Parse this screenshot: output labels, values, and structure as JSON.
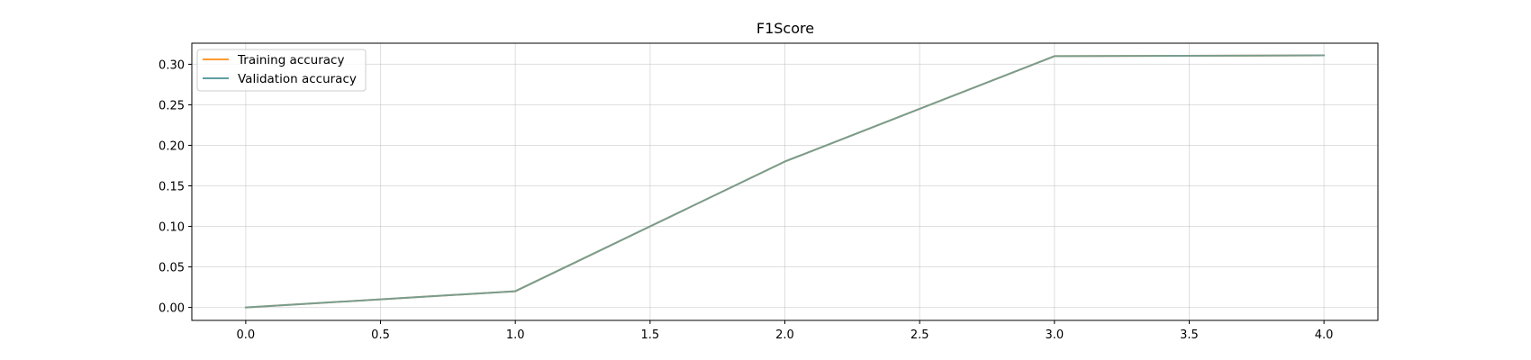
{
  "chart_data": {
    "type": "line",
    "title": "F1Score",
    "xlabel": "",
    "ylabel": "",
    "x": [
      0,
      1,
      2,
      3,
      4
    ],
    "xlim": [
      -0.2,
      4.2
    ],
    "ylim": [
      -0.016,
      0.326
    ],
    "xticks": [
      0.0,
      0.5,
      1.0,
      1.5,
      2.0,
      2.5,
      3.0,
      3.5,
      4.0
    ],
    "yticks": [
      0.0,
      0.05,
      0.1,
      0.15,
      0.2,
      0.25,
      0.3
    ],
    "xtick_labels": [
      "0.0",
      "0.5",
      "1.0",
      "1.5",
      "2.0",
      "2.5",
      "3.0",
      "3.5",
      "4.0"
    ],
    "ytick_labels": [
      "0.00",
      "0.05",
      "0.10",
      "0.15",
      "0.20",
      "0.25",
      "0.30"
    ],
    "grid": true,
    "legend_position": "top-left",
    "series": [
      {
        "name": "Training accuracy",
        "color": "#ff9933",
        "values": [
          0.0,
          0.02,
          0.18,
          0.31,
          0.311
        ]
      },
      {
        "name": "Validation accuracy",
        "color": "#5f9ea0",
        "values": [
          0.0,
          0.02,
          0.18,
          0.31,
          0.311
        ]
      }
    ]
  }
}
